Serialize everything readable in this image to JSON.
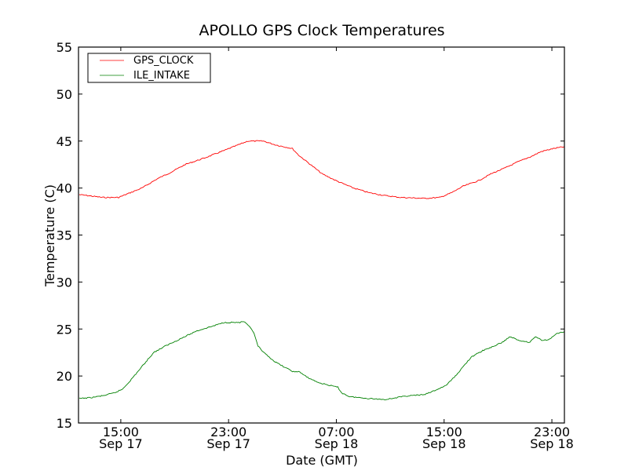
{
  "chart_data": {
    "type": "line",
    "title": "APOLLO GPS Clock Temperatures",
    "xlabel": "Date (GMT)",
    "ylabel": "Temperature (C)",
    "x_units": "hours since Sep 17 00:00 GMT",
    "xlim": [
      11.86,
      47.93
    ],
    "ylim": [
      15,
      55
    ],
    "yticks": [
      15,
      20,
      25,
      30,
      35,
      40,
      45,
      50,
      55
    ],
    "xticks": [
      {
        "value": 15,
        "time": "15:00",
        "date": "Sep 17"
      },
      {
        "value": 23,
        "time": "23:00",
        "date": "Sep 17"
      },
      {
        "value": 31,
        "time": "07:00",
        "date": "Sep 18"
      },
      {
        "value": 39,
        "time": "15:00",
        "date": "Sep 18"
      },
      {
        "value": 47,
        "time": "23:00",
        "date": "Sep 18"
      }
    ],
    "grid": false,
    "legend_position": "top-left",
    "series": [
      {
        "name": "GPS_CLOCK",
        "color": "#ff0000",
        "points": [
          [
            11.92,
            39.3
          ],
          [
            13.66,
            39.0
          ],
          [
            14.83,
            39.0
          ],
          [
            15.7,
            39.5
          ],
          [
            16.57,
            40.0
          ],
          [
            17.73,
            41.0
          ],
          [
            18.61,
            41.6
          ],
          [
            19.77,
            42.5
          ],
          [
            21.22,
            43.2
          ],
          [
            22.68,
            44.0
          ],
          [
            23.55,
            44.5
          ],
          [
            24.42,
            45.0
          ],
          [
            25.58,
            45.0
          ],
          [
            26.46,
            44.6
          ],
          [
            27.74,
            44.2
          ],
          [
            28.2,
            43.5
          ],
          [
            29.08,
            42.5
          ],
          [
            29.95,
            41.5
          ],
          [
            31.11,
            40.7
          ],
          [
            32.28,
            40.0
          ],
          [
            33.44,
            39.5
          ],
          [
            34.6,
            39.2
          ],
          [
            35.77,
            39.0
          ],
          [
            37.51,
            38.9
          ],
          [
            38.68,
            39.0
          ],
          [
            39.55,
            39.5
          ],
          [
            40.42,
            40.2
          ],
          [
            41.58,
            40.8
          ],
          [
            42.46,
            41.5
          ],
          [
            43.62,
            42.2
          ],
          [
            44.49,
            42.8
          ],
          [
            45.37,
            43.3
          ],
          [
            46.24,
            43.9
          ],
          [
            47.11,
            44.2
          ],
          [
            47.93,
            44.4
          ]
        ]
      },
      {
        "name": "ILE_INTAKE",
        "color": "#008000",
        "points": [
          [
            11.92,
            17.6
          ],
          [
            12.79,
            17.7
          ],
          [
            13.66,
            17.9
          ],
          [
            14.53,
            18.2
          ],
          [
            15.12,
            18.6
          ],
          [
            15.7,
            19.5
          ],
          [
            16.28,
            20.5
          ],
          [
            16.86,
            21.5
          ],
          [
            17.44,
            22.5
          ],
          [
            18.32,
            23.2
          ],
          [
            19.48,
            24.0
          ],
          [
            20.64,
            24.8
          ],
          [
            21.81,
            25.3
          ],
          [
            22.68,
            25.7
          ],
          [
            23.84,
            25.7
          ],
          [
            24.13,
            25.8
          ],
          [
            24.71,
            25.0
          ],
          [
            24.89,
            24.5
          ],
          [
            25.18,
            23.2
          ],
          [
            25.59,
            22.5
          ],
          [
            26.46,
            21.5
          ],
          [
            27.33,
            20.8
          ],
          [
            27.91,
            20.4
          ],
          [
            28.2,
            20.5
          ],
          [
            28.79,
            19.9
          ],
          [
            29.66,
            19.3
          ],
          [
            30.53,
            19.0
          ],
          [
            31.11,
            18.8
          ],
          [
            31.4,
            18.2
          ],
          [
            31.99,
            17.8
          ],
          [
            33.44,
            17.6
          ],
          [
            34.6,
            17.5
          ],
          [
            35.48,
            17.7
          ],
          [
            36.35,
            17.9
          ],
          [
            37.51,
            18.0
          ],
          [
            38.39,
            18.5
          ],
          [
            39.14,
            19.0
          ],
          [
            39.84,
            20.0
          ],
          [
            40.42,
            21.0
          ],
          [
            41.0,
            22.0
          ],
          [
            41.87,
            22.7
          ],
          [
            42.74,
            23.2
          ],
          [
            43.33,
            23.6
          ],
          [
            43.91,
            24.2
          ],
          [
            44.49,
            23.8
          ],
          [
            45.37,
            23.6
          ],
          [
            45.78,
            24.2
          ],
          [
            46.24,
            23.8
          ],
          [
            46.82,
            23.9
          ],
          [
            47.29,
            24.5
          ],
          [
            47.93,
            24.7
          ]
        ]
      }
    ]
  }
}
